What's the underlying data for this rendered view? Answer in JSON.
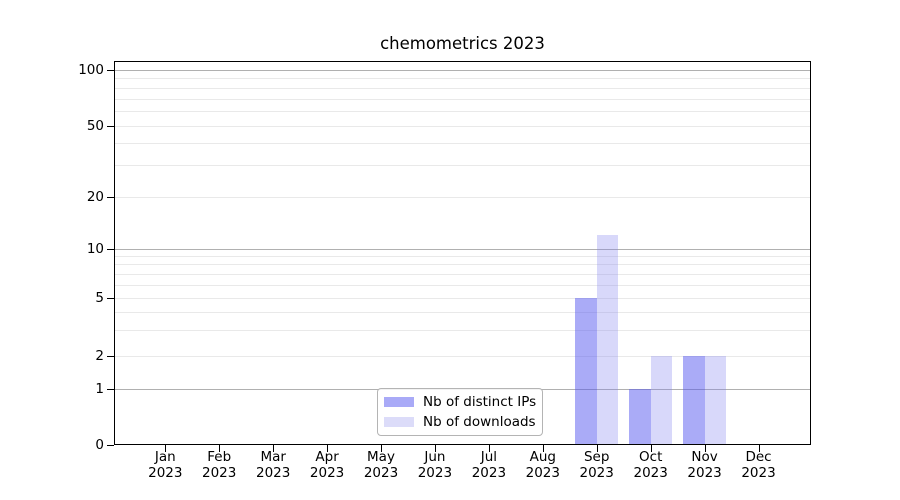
{
  "title": "chemometrics 2023",
  "chart_data": {
    "type": "bar",
    "title": "chemometrics 2023",
    "x_categories": [
      {
        "month": "Jan",
        "year": "2023"
      },
      {
        "month": "Feb",
        "year": "2023"
      },
      {
        "month": "Mar",
        "year": "2023"
      },
      {
        "month": "Apr",
        "year": "2023"
      },
      {
        "month": "May",
        "year": "2023"
      },
      {
        "month": "Jun",
        "year": "2023"
      },
      {
        "month": "Jul",
        "year": "2023"
      },
      {
        "month": "Aug",
        "year": "2023"
      },
      {
        "month": "Sep",
        "year": "2023"
      },
      {
        "month": "Oct",
        "year": "2023"
      },
      {
        "month": "Nov",
        "year": "2023"
      },
      {
        "month": "Dec",
        "year": "2023"
      }
    ],
    "series": [
      {
        "name": "Nb of distinct IPs",
        "color_flat": "#a9aaf7",
        "fill": "rgba(82,84,238,0.49)",
        "values": [
          0,
          0,
          0,
          0,
          0,
          0,
          0,
          0,
          5,
          1,
          2,
          0
        ]
      },
      {
        "name": "Nb of downloads",
        "color_flat": "#dcdcf9",
        "fill": "rgba(130,130,240,0.31)",
        "values": [
          0,
          0,
          0,
          0,
          0,
          0,
          0,
          0,
          12,
          2,
          2,
          0
        ]
      }
    ],
    "y_axis": {
      "tick_labels": [
        100,
        50,
        20,
        10,
        5,
        2,
        1,
        0
      ],
      "decade_ticks": [
        100,
        10,
        1
      ],
      "minor_gridlines": [
        90,
        80,
        70,
        60,
        40,
        30,
        9,
        8,
        7,
        6,
        4,
        3
      ],
      "scale": "log above 1, linear 0-1",
      "range": [
        0,
        112
      ]
    },
    "legend": {
      "position": "lower center inside",
      "entries": [
        "Nb of distinct IPs",
        "Nb of downloads"
      ]
    },
    "grid": true
  },
  "colors": {
    "bar_distinct_ips": "#a9aaf7",
    "bar_downloads": "#dcdcf9",
    "grid_major": "#b0b0b0",
    "grid_minor": "#e9e9e9",
    "spine": "#000000",
    "legend_border": "#b4b4b4",
    "background": "#ffffff",
    "text": "#000000"
  }
}
